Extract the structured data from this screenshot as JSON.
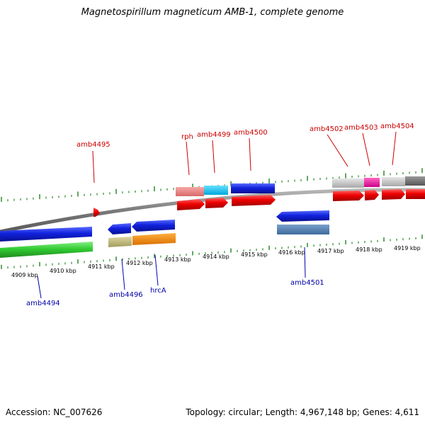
{
  "title": "Magnetospirillum magneticum AMB-1, complete genome",
  "footer": {
    "accession": "Accession: NC_007626",
    "summary": "Topology: circular; Length: 4,967,148 bp; Genes: 4,611"
  },
  "colors": {
    "backbone": "#8c8c8c",
    "tick": "#2a8a2a",
    "label_top": "#cc0000",
    "label_bottom": "#0000aa",
    "gene_red": "#ee0000",
    "gene_blue": "#1122dd",
    "gene_green": "#33cc33"
  },
  "scale_labels": [
    "4909 kbp",
    "4910 kbp",
    "4911 kbp",
    "4912 kbp",
    "4913 kbp",
    "4914 kbp",
    "4915 kbp",
    "4916 kbp",
    "4917 kbp",
    "4918 kbp",
    "4919 kbp"
  ],
  "top_gene_labels": [
    "amb4495",
    "rph",
    "amb4499",
    "amb4500",
    "amb4502",
    "amb4503",
    "amb4504"
  ],
  "bottom_gene_labels": [
    "amb4494",
    "amb4496",
    "hrcA",
    "amb4501"
  ]
}
